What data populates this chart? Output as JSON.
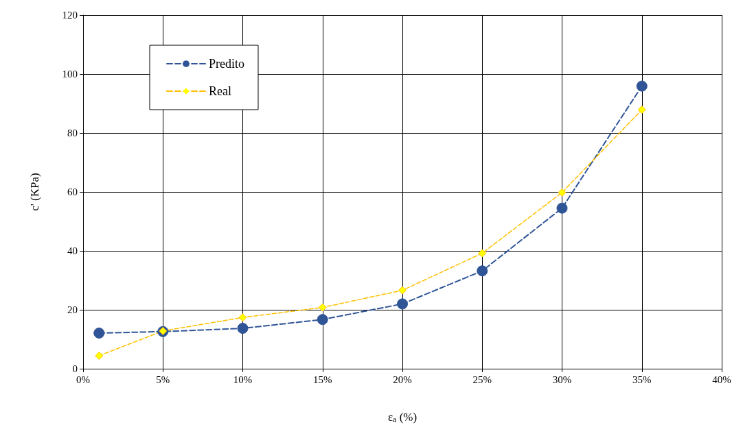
{
  "chart_data": {
    "type": "line",
    "xlabel": "ε$_{a}$ (%)",
    "ylabel": "c' (KPa)",
    "x": [
      1,
      5,
      10,
      15,
      20,
      25,
      30,
      35
    ],
    "series": [
      {
        "name": "Predito",
        "color": "#2f5597",
        "marker": "circle",
        "values": [
          12.1,
          12.6,
          13.7,
          16.7,
          22,
          33.2,
          54.5,
          95.9
        ]
      },
      {
        "name": "Real",
        "color": "#ffc000",
        "marker": "diamond",
        "values": [
          4.4,
          12.8,
          17.4,
          20.8,
          26.6,
          39.2,
          59.8,
          87.9
        ]
      }
    ],
    "xlim": [
      0,
      40
    ],
    "xticks": [
      {
        "value": 0,
        "label": "0%"
      },
      {
        "value": 5,
        "label": "5%"
      },
      {
        "value": 10,
        "label": "10%"
      },
      {
        "value": 15,
        "label": "15%"
      },
      {
        "value": 20,
        "label": "20%"
      },
      {
        "value": 25,
        "label": "25%"
      },
      {
        "value": 30,
        "label": "30%"
      },
      {
        "value": 35,
        "label": "35%"
      },
      {
        "value": 40,
        "label": "40%"
      }
    ],
    "ylim": [
      0,
      120
    ],
    "yticks": [
      0,
      20,
      40,
      60,
      80,
      100,
      120
    ],
    "grid": true,
    "legend": "top left",
    "line_style": "dashed"
  }
}
